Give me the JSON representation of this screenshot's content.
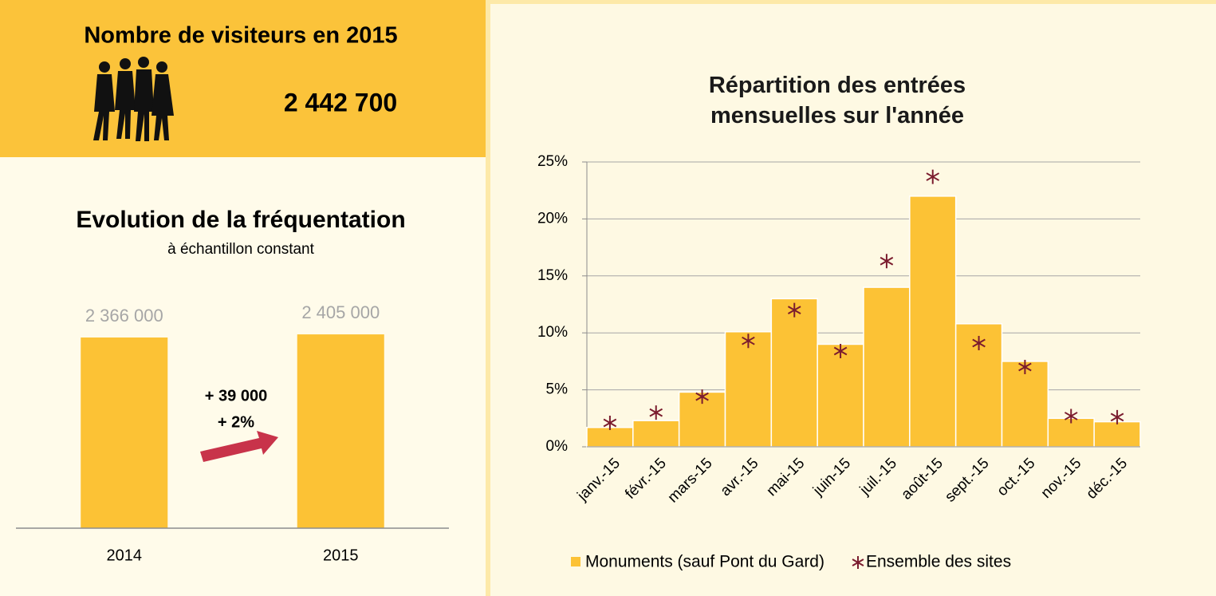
{
  "header": {
    "title": "Nombre de visiteurs en 2015",
    "value": "2 442 700"
  },
  "chart_data": [
    {
      "type": "bar",
      "title": "Evolution de la fréquentation",
      "subtitle": "à échantillon constant",
      "categories": [
        "2014",
        "2015"
      ],
      "values": [
        2366000,
        2405000
      ],
      "value_labels": [
        "2 366 000",
        "2 405 000"
      ],
      "color": "#fcc235",
      "ylim": [
        0,
        3000000
      ],
      "annotations": [
        "+ 39 000",
        "+ 2%"
      ]
    },
    {
      "type": "bar",
      "title": "Répartition des entrées mensuelles sur l'année",
      "categories": [
        "janv.-15",
        "févr.-15",
        "mars-15",
        "avr.-15",
        "mai-15",
        "juin-15",
        "juil.-15",
        "août-15",
        "sept.-15",
        "oct.-15",
        "nov.-15",
        "déc.-15"
      ],
      "series": [
        {
          "name": "Monuments (sauf Pont du Gard)",
          "type": "bar",
          "color": "#fcc235",
          "values": [
            1.7,
            2.3,
            4.8,
            10.1,
            13.0,
            9.0,
            14.0,
            22.0,
            10.8,
            7.5,
            2.5,
            2.2
          ]
        },
        {
          "name": "Ensemble des sites",
          "type": "scatter",
          "color": "#7b1c2e",
          "values": [
            2.1,
            3.0,
            4.4,
            9.3,
            12.0,
            8.4,
            16.3,
            23.7,
            9.1,
            7.0,
            2.7,
            2.6
          ]
        }
      ],
      "ylim": [
        0,
        25
      ],
      "yticks": [
        {
          "value": 0,
          "label": "0%"
        },
        {
          "value": 5,
          "label": "5%"
        },
        {
          "value": 10,
          "label": "10%"
        },
        {
          "value": 15,
          "label": "15%"
        },
        {
          "value": 20,
          "label": "20%"
        },
        {
          "value": 25,
          "label": "25%"
        }
      ],
      "grid": true,
      "legend": "bottom"
    }
  ]
}
